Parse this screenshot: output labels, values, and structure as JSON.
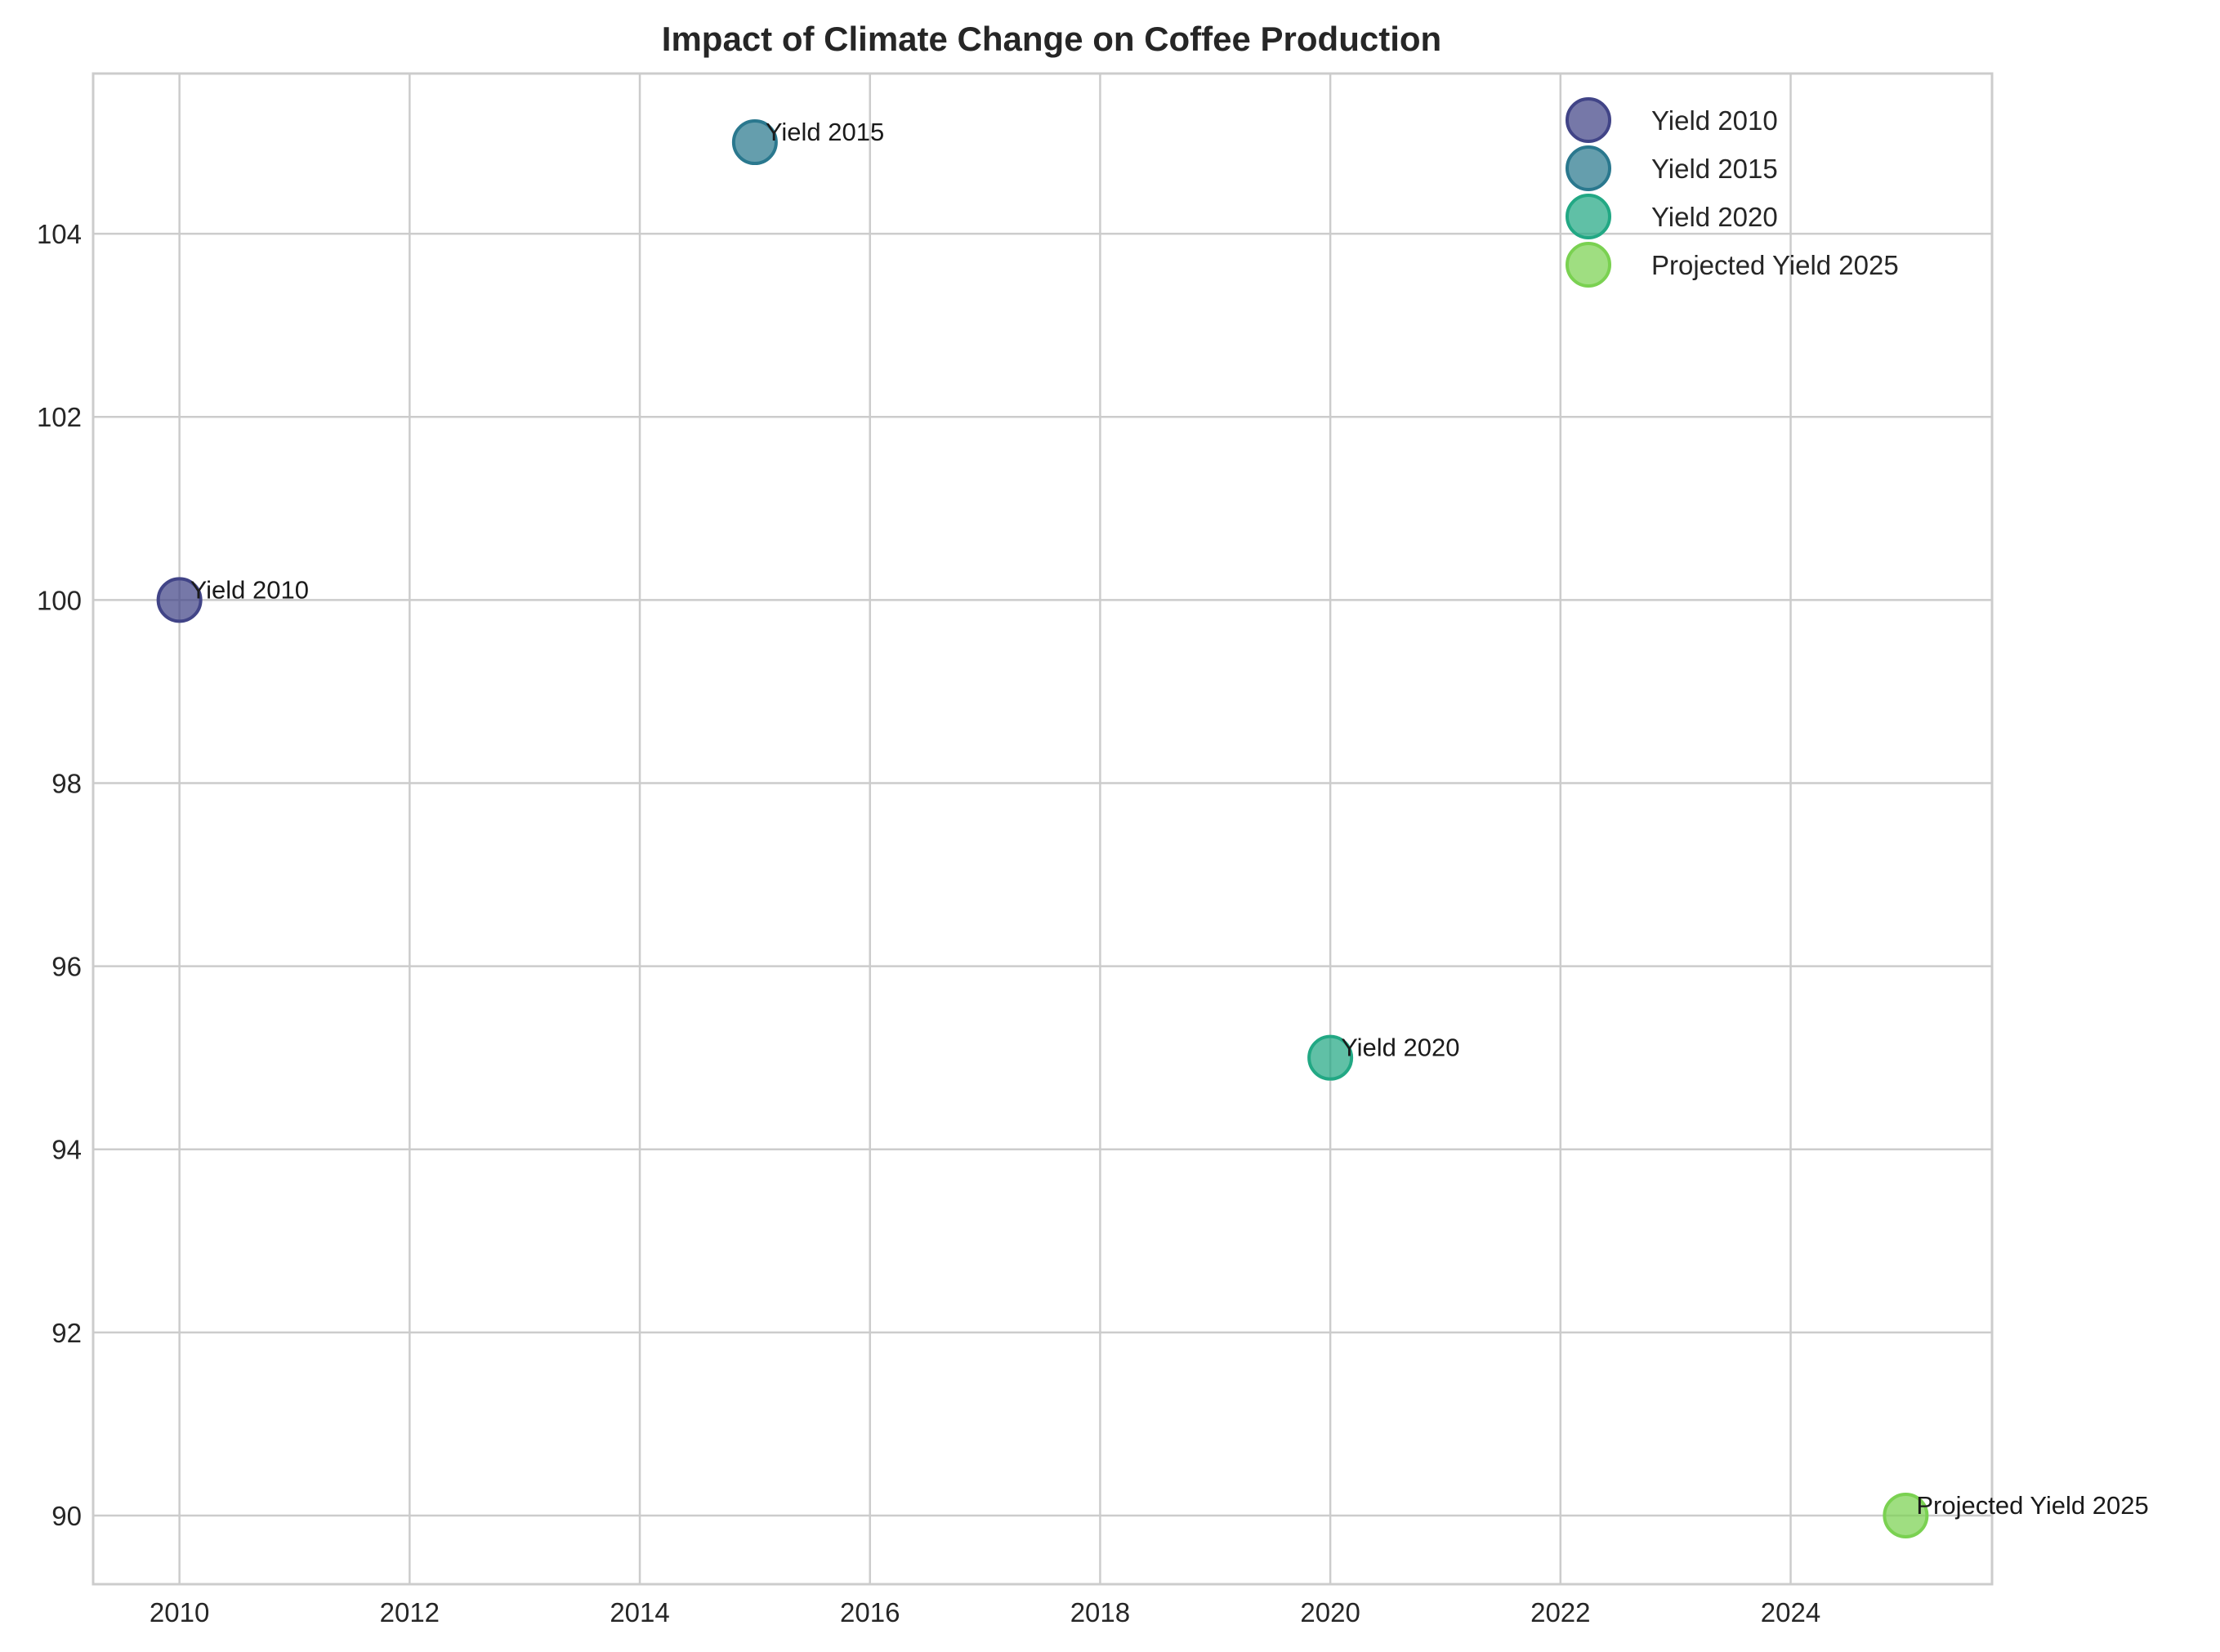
{
  "chart_data": {
    "type": "scatter",
    "title": "Impact of Climate Change on Coffee Production",
    "xlabel": "",
    "ylabel": "",
    "xlim": [
      2009.25,
      2025.75
    ],
    "ylim": [
      89.25,
      105.75
    ],
    "xticks": [
      2010,
      2012,
      2014,
      2016,
      2018,
      2020,
      2022,
      2024
    ],
    "yticks": [
      90,
      92,
      94,
      96,
      98,
      100,
      102,
      104
    ],
    "grid": true,
    "legend_position": "top-right",
    "series": [
      {
        "name": "Yield 2010",
        "x": 2010,
        "y": 100,
        "label": "Yield 2010",
        "color": "#414487"
      },
      {
        "name": "Yield 2015",
        "x": 2015,
        "y": 105,
        "label": "Yield 2015",
        "color": "#2a788e"
      },
      {
        "name": "Yield 2020",
        "x": 2020,
        "y": 95,
        "label": "Yield 2020",
        "color": "#22a884"
      },
      {
        "name": "Projected Yield 2025",
        "x": 2025,
        "y": 90,
        "label": "Projected Yield 2025",
        "color": "#7ad151"
      }
    ]
  }
}
